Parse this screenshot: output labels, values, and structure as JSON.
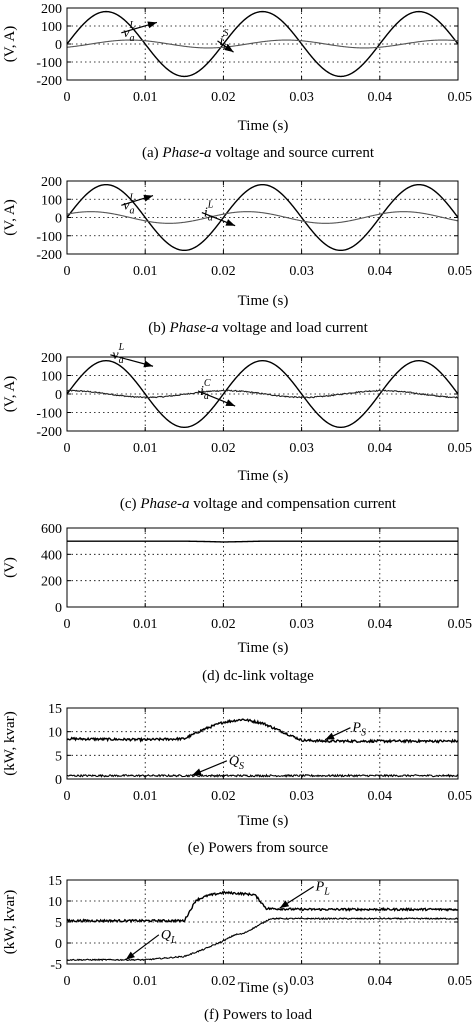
{
  "chart_data": [
    {
      "type": "line",
      "caption": {
        "label": "(a)",
        "italic": "Phase-a",
        "rest": " voltage and source current"
      },
      "xlabel": "Time (s)",
      "ylabel": "(V, A)",
      "xlim": [
        0,
        0.05
      ],
      "ylim": [
        -200,
        200
      ],
      "xticks": [
        "0",
        "0.01",
        "0.02",
        "0.03",
        "0.04",
        "0.05"
      ],
      "yticks": [
        "200",
        "100",
        "0",
        "-100",
        "-200"
      ],
      "grid": true,
      "series": [
        {
          "name": "v",
          "sub": "a",
          "sup": "L",
          "kind": "sine",
          "amplitude": 180,
          "frequency": 50,
          "phase_deg": 0,
          "color": "#000000"
        },
        {
          "name": "i",
          "sub": "a",
          "sup": "S",
          "kind": "sine",
          "amplitude": 22,
          "frequency": 50,
          "phase_deg": -55,
          "color": "#555555"
        }
      ],
      "annotations": [
        {
          "series": 0,
          "text": "v",
          "sub": "a",
          "sup": "L",
          "x": 0.0115,
          "y": 120,
          "tx": 0.0072,
          "ty": 40
        },
        {
          "series": 1,
          "text": "i",
          "sub": "a",
          "sup": "S",
          "x": 0.0213,
          "y": -45,
          "tx": 0.0195,
          "ty": -5
        }
      ]
    },
    {
      "type": "line",
      "caption": {
        "label": "(b)",
        "italic": "Phase-a",
        "rest": " voltage and load current"
      },
      "xlabel": "Time (s)",
      "ylabel": "(V, A)",
      "xlim": [
        0,
        0.05
      ],
      "ylim": [
        -200,
        200
      ],
      "xticks": [
        "0",
        "0.01",
        "0.02",
        "0.03",
        "0.04",
        "0.05"
      ],
      "yticks": [
        "200",
        "100",
        "0",
        "-100",
        "-200"
      ],
      "grid": true,
      "series": [
        {
          "name": "v",
          "sub": "a",
          "sup": "L",
          "kind": "sine",
          "amplitude": 180,
          "frequency": 50,
          "phase_deg": 0,
          "color": "#000000"
        },
        {
          "name": "i",
          "sub": "a",
          "sup": "L",
          "kind": "sine",
          "amplitude": 32,
          "frequency": 50,
          "phase_deg": 35,
          "color": "#555555"
        }
      ],
      "annotations": [
        {
          "series": 0,
          "text": "v",
          "sub": "a",
          "sup": "L",
          "x": 0.011,
          "y": 120,
          "tx": 0.0072,
          "ty": 45
        },
        {
          "series": 1,
          "text": "i",
          "sub": "a",
          "sup": "L",
          "x": 0.0215,
          "y": -45,
          "tx": 0.0175,
          "ty": 5
        }
      ]
    },
    {
      "type": "line",
      "caption": {
        "label": "(c)",
        "italic": "Phase-a",
        "rest": " voltage and compensation current"
      },
      "xlabel": "Time (s)",
      "ylabel": "(V, A)",
      "xlim": [
        0,
        0.05
      ],
      "ylim": [
        -200,
        200
      ],
      "xticks": [
        "0",
        "0.01",
        "0.02",
        "0.03",
        "0.04",
        "0.05"
      ],
      "yticks": [
        "200",
        "100",
        "0",
        "-100",
        "-200"
      ],
      "grid": true,
      "series": [
        {
          "name": "v",
          "sub": "a",
          "sup": "L",
          "kind": "sine",
          "amplitude": 180,
          "frequency": 50,
          "phase_deg": 0,
          "color": "#000000"
        },
        {
          "name": "i",
          "sub": "a",
          "sup": "C",
          "kind": "sine",
          "amplitude": 18,
          "frequency": 50,
          "phase_deg": 85,
          "noise": 3,
          "color": "#222222"
        }
      ],
      "annotations": [
        {
          "series": 0,
          "text": "v",
          "sub": "a",
          "sup": "L",
          "x": 0.011,
          "y": 150,
          "tx": 0.0058,
          "ty": 190
        },
        {
          "series": 1,
          "text": "i",
          "sub": "a",
          "sup": "C",
          "x": 0.0215,
          "y": -65,
          "tx": 0.017,
          "ty": -5
        }
      ]
    },
    {
      "type": "line",
      "caption": {
        "label": "(d)",
        "italic": "",
        "rest": " dc-link voltage"
      },
      "xlabel": "Time (s)",
      "ylabel": "(V)",
      "xlim": [
        0,
        0.05
      ],
      "ylim": [
        0,
        600
      ],
      "xticks": [
        "0",
        "0.01",
        "0.02",
        "0.03",
        "0.04",
        "0.05"
      ],
      "yticks": [
        "600",
        "400",
        "200",
        "0"
      ],
      "grid": true,
      "series": [
        {
          "name": "",
          "kind": "points",
          "color": "#000000",
          "x": [
            0,
            0.015,
            0.018,
            0.02,
            0.022,
            0.025,
            0.05
          ],
          "y": [
            500,
            500,
            497,
            494,
            496,
            500,
            500
          ]
        }
      ],
      "annotations": []
    },
    {
      "type": "line",
      "caption": {
        "label": "(e)",
        "italic": "",
        "rest": " Powers from source"
      },
      "xlabel": "Time (s)",
      "ylabel": "(kW, kvar)",
      "xlim": [
        0,
        0.05
      ],
      "ylim": [
        0,
        15
      ],
      "xticks": [
        "0",
        "0.01",
        "0.02",
        "0.03",
        "0.04",
        "0.05"
      ],
      "yticks": [
        "15",
        "10",
        "5",
        "0"
      ],
      "grid": true,
      "series": [
        {
          "name": "P",
          "sub": "S",
          "kind": "points",
          "noise": 0.25,
          "color": "#000000",
          "x": [
            0,
            0.01,
            0.015,
            0.0175,
            0.02,
            0.0225,
            0.025,
            0.0275,
            0.03,
            0.033,
            0.05
          ],
          "y": [
            8.5,
            8.3,
            8.5,
            10.5,
            12.0,
            12.6,
            11.8,
            10.0,
            8.2,
            8.0,
            8.0
          ]
        },
        {
          "name": "Q",
          "sub": "S",
          "kind": "points",
          "noise": 0.2,
          "color": "#000000",
          "x": [
            0,
            0.05
          ],
          "y": [
            0.7,
            0.7
          ]
        }
      ],
      "annotations": [
        {
          "series": 0,
          "text": "P",
          "sub": "S",
          "x": 0.033,
          "y": 8.3,
          "tx": 0.0365,
          "ty": 10.0
        },
        {
          "series": 1,
          "text": "Q",
          "sub": "S",
          "x": 0.016,
          "y": 0.8,
          "tx": 0.0207,
          "ty": 3.0
        }
      ]
    },
    {
      "type": "line",
      "caption": {
        "label": "(f)",
        "italic": "",
        "rest": " Powers to load"
      },
      "xlabel": "Time (s)",
      "ylabel": "(kW, kvar)",
      "xlim": [
        0,
        0.05
      ],
      "ylim": [
        -5,
        15
      ],
      "xticks": [
        "0",
        "0.01",
        "0.02",
        "0.03",
        "0.04",
        "0.05"
      ],
      "yticks": [
        "15",
        "10",
        "5",
        "0",
        "-5"
      ],
      "grid": true,
      "series": [
        {
          "name": "P",
          "sub": "L",
          "kind": "points",
          "noise": 0.25,
          "color": "#000000",
          "x": [
            0,
            0.015,
            0.0165,
            0.018,
            0.02,
            0.022,
            0.024,
            0.0255,
            0.03,
            0.05
          ],
          "y": [
            5.3,
            5.3,
            10.2,
            11.3,
            12.0,
            11.8,
            11.5,
            8.2,
            8.0,
            8.0
          ]
        },
        {
          "name": "Q",
          "sub": "L",
          "kind": "points",
          "noise": 0.15,
          "color": "#000000",
          "x": [
            0,
            0.01,
            0.015,
            0.0175,
            0.02,
            0.0215,
            0.0225,
            0.0245,
            0.026,
            0.05
          ],
          "y": [
            -4.0,
            -4.0,
            -3.2,
            -1.5,
            0.5,
            2.0,
            2.2,
            4.2,
            5.8,
            5.8
          ]
        }
      ],
      "annotations": [
        {
          "series": 0,
          "text": "P",
          "sub": "L",
          "x": 0.0272,
          "y": 8.3,
          "tx": 0.0318,
          "ty": 12.5
        },
        {
          "series": 1,
          "text": "Q",
          "sub": "L",
          "x": 0.0075,
          "y": -4.0,
          "tx": 0.012,
          "ty": 1.0
        }
      ]
    }
  ]
}
